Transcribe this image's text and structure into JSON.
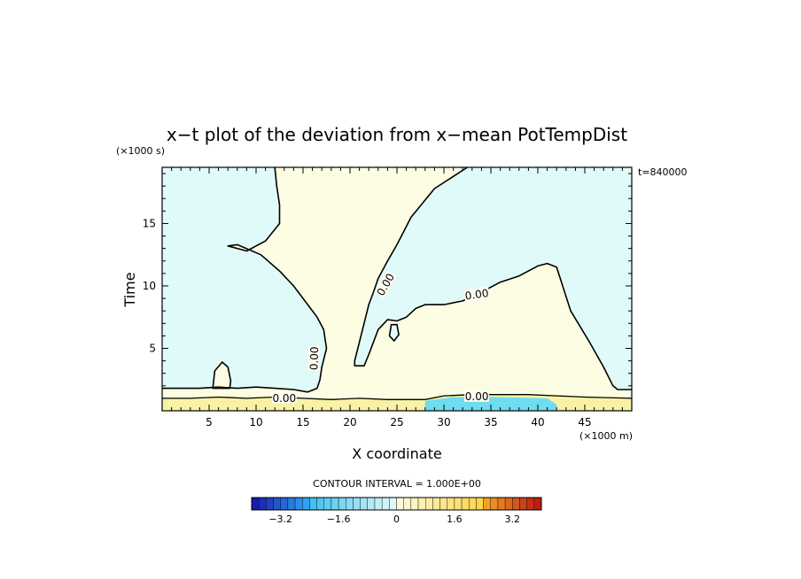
{
  "chart_data": {
    "type": "contour",
    "title": "x−t plot of the deviation from x−mean PotTempDist",
    "xlabel": "X coordinate",
    "ylabel": "Time",
    "x_unit": "(×1000 m)",
    "y_unit": "(×1000 s)",
    "time_stamp": "t=840000",
    "xlim": [
      0,
      50
    ],
    "ylim": [
      0,
      19.5
    ],
    "x_ticks": [
      5,
      10,
      15,
      20,
      25,
      30,
      35,
      40,
      45
    ],
    "y_ticks": [
      5,
      10,
      15
    ],
    "contour_label": "0.00",
    "contour_interval_text": "CONTOUR INTERVAL = 1.000E+00",
    "colorbar": {
      "min": -4,
      "max": 4,
      "step": 0.2,
      "tick_values": [
        -3.2,
        -1.6,
        0,
        1.6,
        3.2
      ],
      "tick_labels": [
        "−3.2",
        "−1.6",
        "0",
        "1.6",
        "3.2"
      ]
    },
    "region_colors": {
      "negative": "#e0fafa",
      "positive": "#fdfde3",
      "warm_band": "#f7f2a6",
      "cool_band": "#6fdcef"
    },
    "zero_contour_left": [
      [
        0,
        1.8
      ],
      [
        2,
        1.8
      ],
      [
        4,
        1.8
      ],
      [
        6,
        1.9
      ],
      [
        8,
        1.8
      ],
      [
        10,
        1.9
      ],
      [
        12,
        1.8
      ],
      [
        14,
        1.7
      ],
      [
        15.5,
        1.5
      ],
      [
        16.5,
        1.8
      ],
      [
        16.8,
        2.5
      ],
      [
        17,
        3.5
      ],
      [
        17.5,
        5
      ],
      [
        17.2,
        6.5
      ],
      [
        16.5,
        7.5
      ],
      [
        15.5,
        8.5
      ],
      [
        14,
        10
      ],
      [
        12.5,
        11.2
      ],
      [
        10.5,
        12.5
      ],
      [
        8,
        13.3
      ],
      [
        7,
        13.2
      ],
      [
        9,
        12.8
      ],
      [
        11,
        13.6
      ],
      [
        12.5,
        15
      ],
      [
        12.5,
        16.5
      ],
      [
        12.2,
        18
      ],
      [
        12,
        19.5
      ]
    ],
    "zero_contour_right": [
      [
        32.5,
        19.5
      ],
      [
        29,
        17.8
      ],
      [
        26.5,
        15.5
      ],
      [
        25,
        13.3
      ],
      [
        24,
        12
      ],
      [
        23,
        10.6
      ],
      [
        22.5,
        9.5
      ],
      [
        22,
        8.5
      ],
      [
        21.5,
        7
      ],
      [
        21,
        5.5
      ],
      [
        20.5,
        4
      ],
      [
        20.5,
        3.6
      ],
      [
        21.5,
        3.6
      ],
      [
        22,
        4.5
      ],
      [
        23,
        6.5
      ],
      [
        24,
        7.3
      ],
      [
        25,
        7.2
      ],
      [
        26,
        7.5
      ],
      [
        27,
        8.2
      ],
      [
        28,
        8.5
      ],
      [
        30,
        8.5
      ],
      [
        32,
        8.8
      ],
      [
        34,
        9.5
      ],
      [
        36,
        10.3
      ],
      [
        38,
        10.8
      ],
      [
        40,
        11.6
      ],
      [
        41,
        11.8
      ],
      [
        42,
        11.5
      ],
      [
        43.5,
        8
      ],
      [
        45.5,
        5.5
      ],
      [
        47,
        3.5
      ],
      [
        48,
        2
      ],
      [
        48.5,
        1.7
      ],
      [
        50,
        1.7
      ]
    ],
    "zero_contour_lower": [
      [
        0,
        1.0
      ],
      [
        3,
        1.0
      ],
      [
        6,
        1.1
      ],
      [
        9,
        1.0
      ],
      [
        12,
        1.1
      ],
      [
        15,
        1.0
      ],
      [
        18,
        0.9
      ],
      [
        21,
        1.0
      ],
      [
        24,
        0.9
      ],
      [
        28,
        0.9
      ],
      [
        30,
        1.2
      ],
      [
        33,
        1.3
      ],
      [
        36,
        1.3
      ],
      [
        39,
        1.3
      ],
      [
        42,
        1.2
      ],
      [
        45,
        1.1
      ],
      [
        50,
        1.0
      ]
    ],
    "closed_zero_contours": [
      [
        [
          5.4,
          1.8
        ],
        [
          5.6,
          3.2
        ],
        [
          6.4,
          3.9
        ],
        [
          7.0,
          3.5
        ],
        [
          7.3,
          2.4
        ],
        [
          7.2,
          1.8
        ]
      ],
      [
        [
          24.2,
          6.0
        ],
        [
          24.4,
          6.9
        ],
        [
          25.0,
          6.9
        ],
        [
          25.2,
          6.1
        ],
        [
          24.7,
          5.6
        ]
      ]
    ],
    "contour_labels_at": [
      [
        16.2,
        4.2,
        -88
      ],
      [
        23.8,
        10.1,
        -60
      ],
      [
        33.5,
        9.3,
        -8
      ],
      [
        33.5,
        1.15,
        0
      ],
      [
        13,
        1.0,
        0
      ]
    ]
  }
}
